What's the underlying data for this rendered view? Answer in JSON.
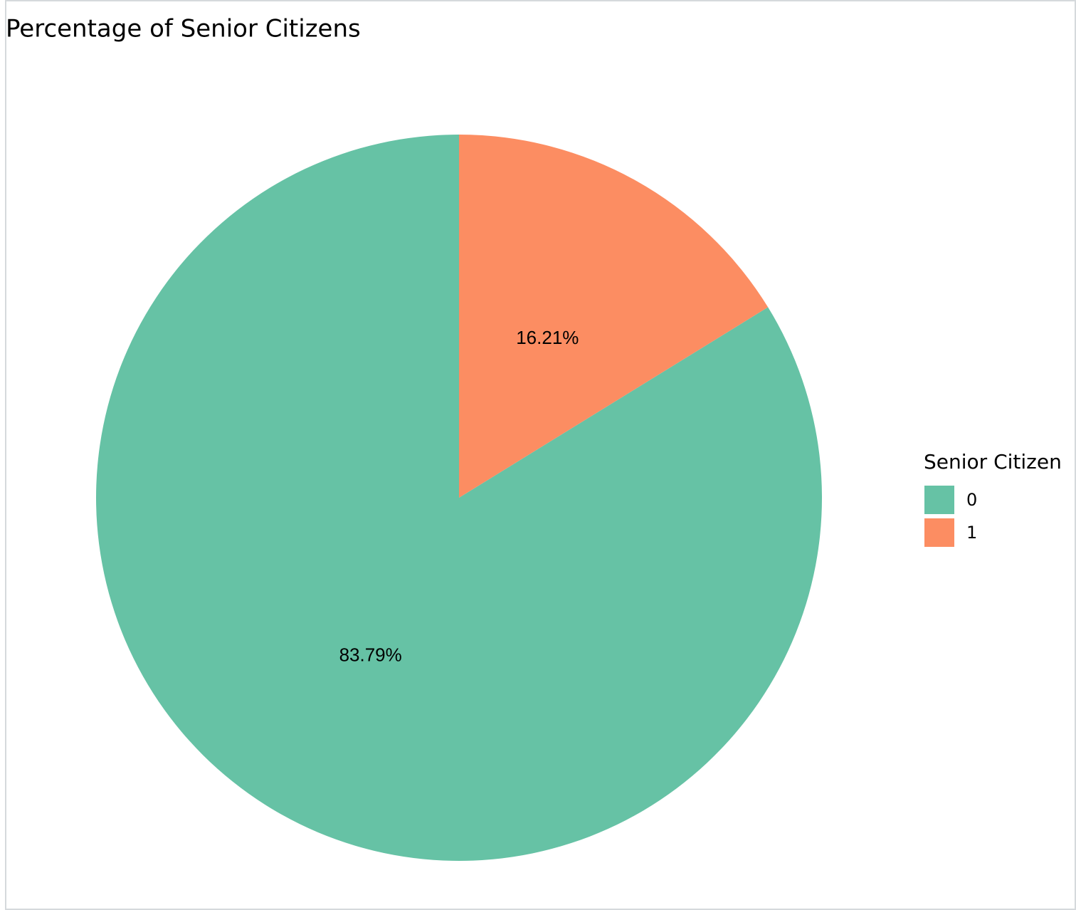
{
  "chart_data": {
    "type": "pie",
    "title": "Percentage of Senior Citizens",
    "legend_title": "Senior Citizen",
    "categories": [
      "0",
      "1"
    ],
    "values": [
      83.79,
      16.21
    ],
    "value_labels": [
      "83.79%",
      "16.21%"
    ],
    "colors": [
      "#66c2a5",
      "#fc8d62"
    ],
    "legend": "right"
  }
}
